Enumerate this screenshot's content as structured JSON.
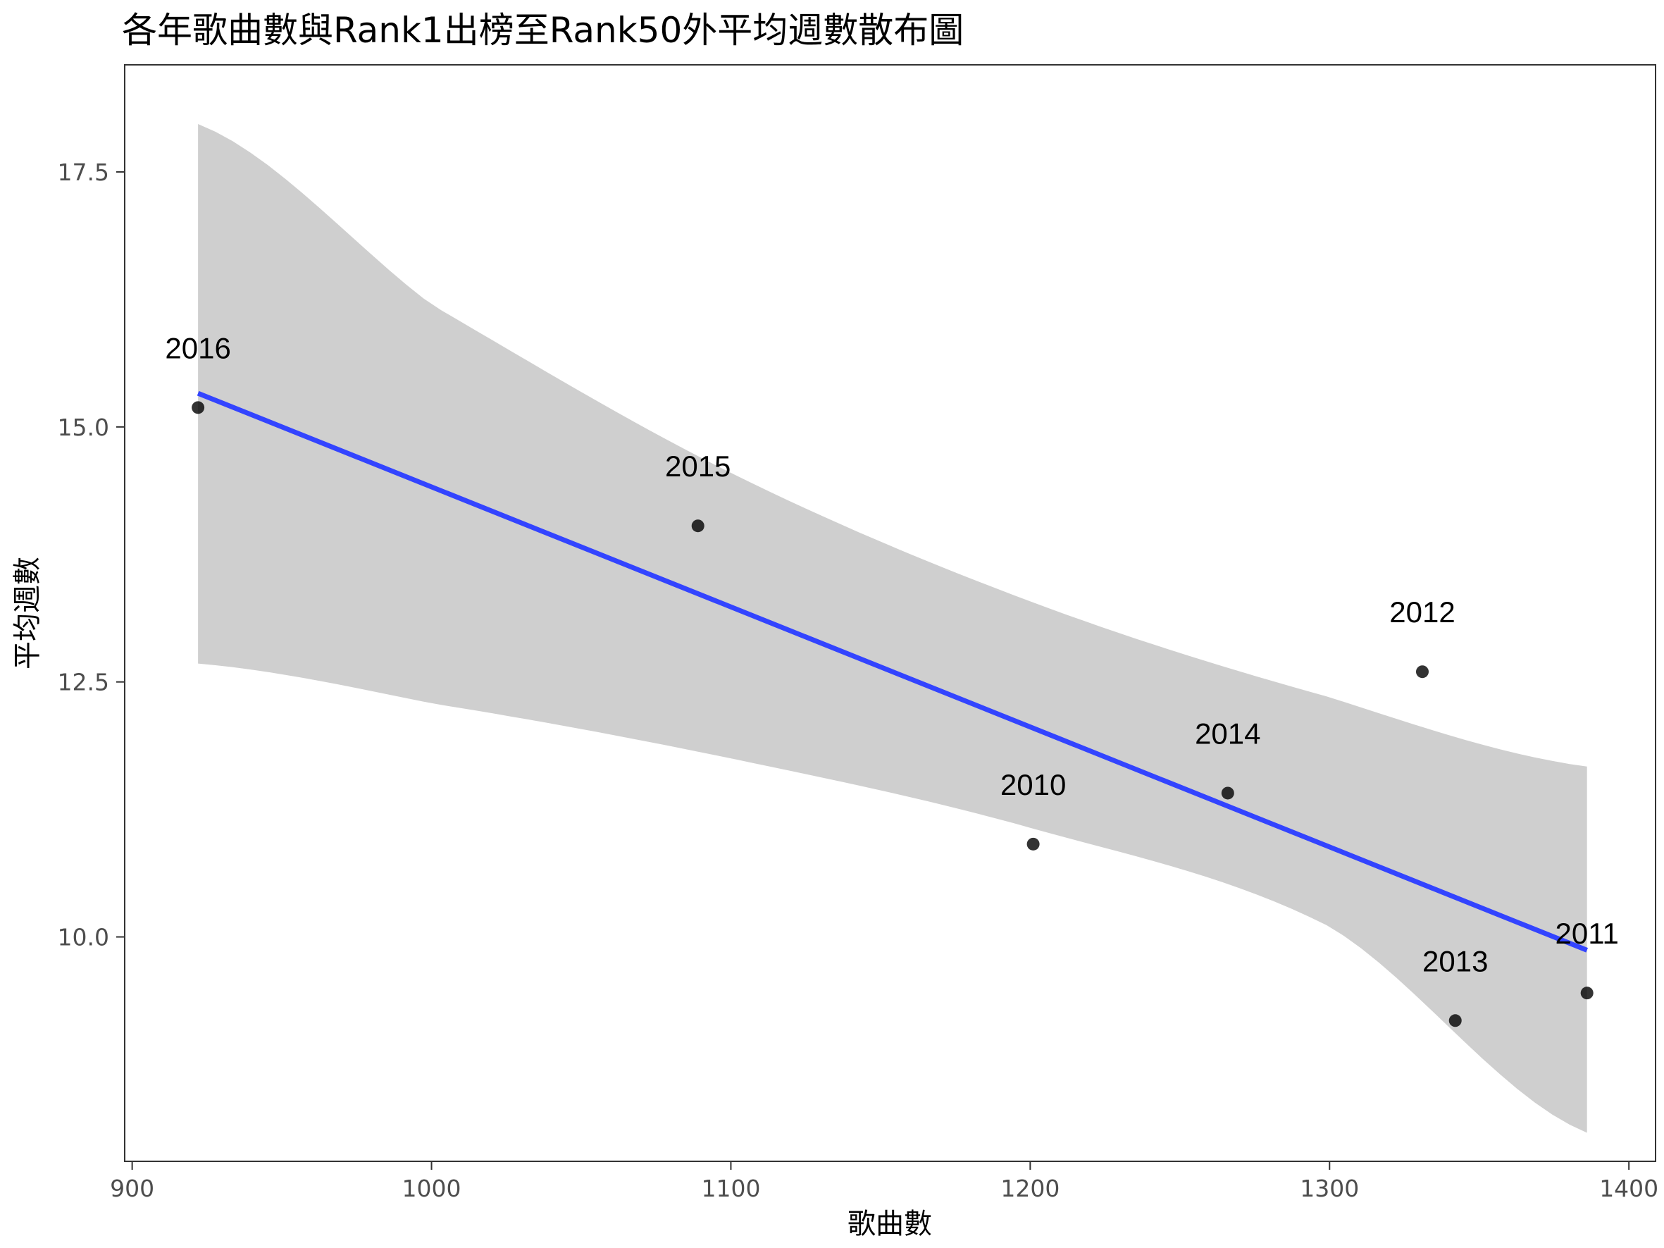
{
  "chart_data": {
    "type": "scatter",
    "title": "各年歌曲數與Rank1出榜至Rank50外平均週數散布圖",
    "xlabel": "歌曲數",
    "ylabel": "平均週數",
    "xlim": [
      897.5,
      1408.9
    ],
    "ylim": [
      7.8,
      18.55
    ],
    "xticks": [
      900,
      1000,
      1100,
      1200,
      1300,
      1400
    ],
    "xtick_labels": [
      "900",
      "1000",
      "1100",
      "1200",
      "1300",
      "1400"
    ],
    "yticks": [
      10.0,
      12.5,
      15.0,
      17.5
    ],
    "ytick_labels": [
      "10.0",
      "12.5",
      "15.0",
      "17.5"
    ],
    "grid": false,
    "legend": "none",
    "points": [
      {
        "label": "2016",
        "x": 922,
        "y": 15.19
      },
      {
        "label": "2015",
        "x": 1089,
        "y": 14.03
      },
      {
        "label": "2010",
        "x": 1201,
        "y": 10.91
      },
      {
        "label": "2014",
        "x": 1266,
        "y": 11.41
      },
      {
        "label": "2012",
        "x": 1331,
        "y": 12.6
      },
      {
        "label": "2013",
        "x": 1342,
        "y": 9.18
      },
      {
        "label": "2011",
        "x": 1386,
        "y": 9.45
      }
    ],
    "fit": {
      "method": "linear",
      "x": [
        922,
        1386
      ],
      "y": [
        15.33,
        9.87
      ],
      "color": "#3344ff",
      "band_x": [
        922,
        1000,
        1100,
        1200,
        1300,
        1386
      ],
      "band_lower": [
        12.68,
        12.29,
        11.75,
        11.07,
        10.1,
        8.08
      ],
      "band_upper": [
        17.97,
        16.2,
        14.55,
        13.29,
        12.35,
        11.67
      ],
      "band_color": "#cfcfcf"
    },
    "point_color": "#000000"
  }
}
